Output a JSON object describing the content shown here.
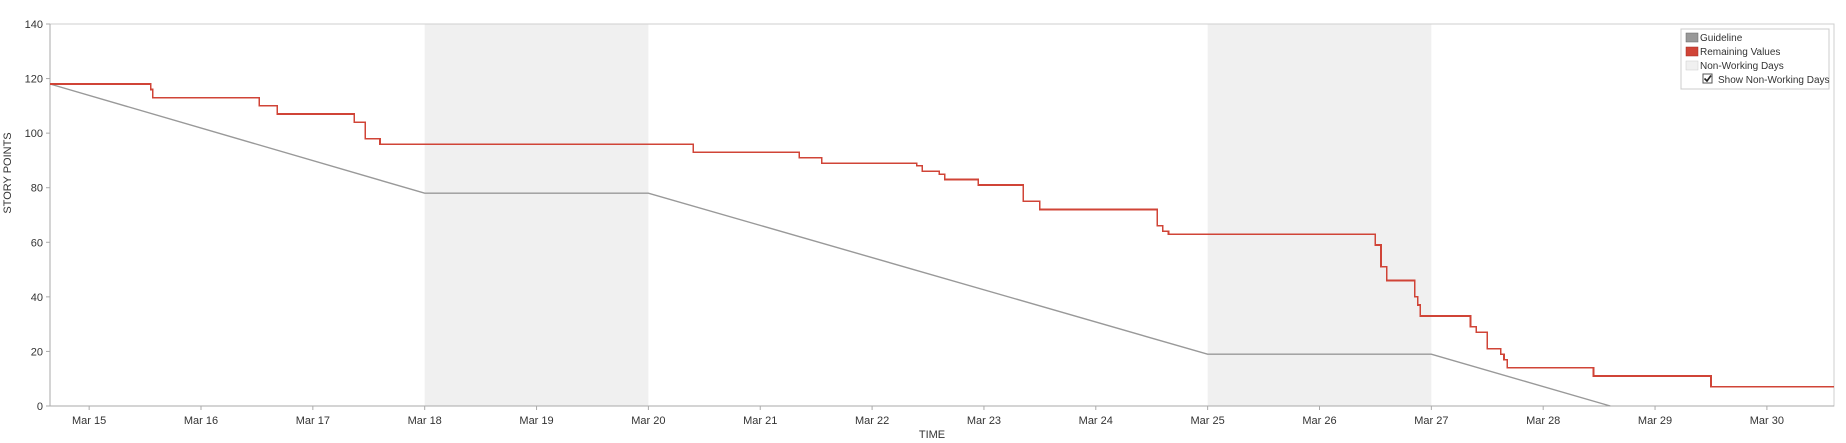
{
  "chart_data": {
    "type": "line",
    "xlabel": "TIME",
    "ylabel": "STORY POINTS",
    "ylim": [
      0,
      140
    ],
    "yticks": [
      0,
      20,
      40,
      60,
      80,
      100,
      120,
      140
    ],
    "xlim": [
      14.65,
      30.6
    ],
    "xticks": [
      {
        "x": 15,
        "label": "Mar 15"
      },
      {
        "x": 16,
        "label": "Mar 16"
      },
      {
        "x": 17,
        "label": "Mar 17"
      },
      {
        "x": 18,
        "label": "Mar 18"
      },
      {
        "x": 19,
        "label": "Mar 19"
      },
      {
        "x": 20,
        "label": "Mar 20"
      },
      {
        "x": 21,
        "label": "Mar 21"
      },
      {
        "x": 22,
        "label": "Mar 22"
      },
      {
        "x": 23,
        "label": "Mar 23"
      },
      {
        "x": 24,
        "label": "Mar 24"
      },
      {
        "x": 25,
        "label": "Mar 25"
      },
      {
        "x": 26,
        "label": "Mar 26"
      },
      {
        "x": 27,
        "label": "Mar 27"
      },
      {
        "x": 28,
        "label": "Mar 28"
      },
      {
        "x": 29,
        "label": "Mar 29"
      },
      {
        "x": 30,
        "label": "Mar 30"
      }
    ],
    "non_working_days": [
      [
        18,
        20
      ],
      [
        25,
        27
      ]
    ],
    "series": [
      {
        "name": "Guideline",
        "color": "#999999",
        "step": false,
        "x": [
          14.65,
          18,
          20,
          25,
          27,
          28.6
        ],
        "y": [
          118,
          78,
          78,
          19,
          19,
          0
        ]
      },
      {
        "name": "Remaining Values",
        "color": "#d04437",
        "step": true,
        "x": [
          14.65,
          15.55,
          15.57,
          16.52,
          16.68,
          17.37,
          17.47,
          17.6,
          20.4,
          21.35,
          21.55,
          22.4,
          22.45,
          22.6,
          22.65,
          22.95,
          23.35,
          23.5,
          24.55,
          24.6,
          24.65,
          26.5,
          26.55,
          26.6,
          26.7,
          26.85,
          26.88,
          26.9,
          27.35,
          27.4,
          27.5,
          27.6,
          27.62,
          27.65,
          27.68,
          28.45,
          29.5,
          30.6
        ],
        "y": [
          118,
          116,
          113,
          110,
          107,
          104,
          98,
          96,
          93,
          91,
          89,
          88,
          86,
          85,
          83,
          81,
          75,
          72,
          66,
          64,
          63,
          59,
          51,
          46,
          46,
          40,
          37,
          33,
          29,
          27,
          21,
          21,
          19,
          17,
          14,
          11,
          7,
          7
        ]
      }
    ],
    "legend": {
      "position": "top-right",
      "items": [
        {
          "label": "Guideline",
          "color": "#999999"
        },
        {
          "label": "Remaining Values",
          "color": "#d04437"
        },
        {
          "label": "Non-Working Days",
          "color": "#f0f0f0"
        }
      ],
      "checkbox": {
        "label": "Show Non-Working Days",
        "checked": true
      }
    }
  }
}
